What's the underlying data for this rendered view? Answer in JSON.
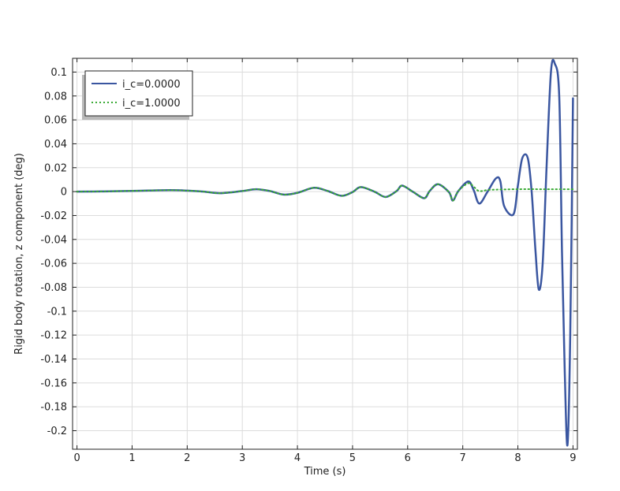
{
  "chart_data": {
    "type": "line",
    "title": "",
    "xlabel": "Time (s)",
    "ylabel": "Rigid body rotation, z component (deg)",
    "xlim": [
      -0.08,
      9.08
    ],
    "ylim": [
      -0.2155,
      0.1115
    ],
    "xticks": [
      0,
      1,
      2,
      3,
      4,
      5,
      6,
      7,
      8,
      9
    ],
    "xtick_labels": [
      "0",
      "1",
      "2",
      "3",
      "4",
      "5",
      "6",
      "7",
      "8",
      "9"
    ],
    "yticks": [
      0.1,
      0.08,
      0.06,
      0.04,
      0.02,
      0,
      -0.02,
      -0.04,
      -0.06,
      -0.08,
      -0.1,
      -0.12,
      -0.14,
      -0.16,
      -0.18,
      -0.2
    ],
    "ytick_labels": [
      "0.1",
      "0.08",
      "0.06",
      "0.04",
      "0.02",
      "0",
      "-0.02",
      "-0.04",
      "-0.06",
      "-0.08",
      "-0.1",
      "-0.12",
      "-0.14",
      "-0.16",
      "-0.18",
      "-0.2"
    ],
    "grid": true,
    "legend_position": "top-left",
    "series": [
      {
        "name": "i_c=0.0000",
        "color": "#3a56a0",
        "style": "solid",
        "x": [
          0,
          0.5,
          1.0,
          1.3,
          1.7,
          2.0,
          2.3,
          2.6,
          3.0,
          3.25,
          3.5,
          3.75,
          4.0,
          4.3,
          4.55,
          4.8,
          5.0,
          5.15,
          5.4,
          5.6,
          5.8,
          5.9,
          6.1,
          6.3,
          6.4,
          6.55,
          6.75,
          6.82,
          6.92,
          7.1,
          7.2,
          7.3,
          7.45,
          7.6,
          7.68,
          7.75,
          7.92,
          8.0,
          8.08,
          8.18,
          8.25,
          8.32,
          8.38,
          8.45,
          8.52,
          8.6,
          8.67,
          8.75,
          8.8,
          8.85,
          8.9,
          8.95,
          9.0
        ],
        "y": [
          0,
          0.0002,
          0.0006,
          0.0009,
          0.0012,
          0.0008,
          0.0,
          -0.0013,
          0.0005,
          0.002,
          0.0005,
          -0.0025,
          -0.001,
          0.0032,
          0.0005,
          -0.0035,
          -0.0004,
          0.0038,
          -0.0001,
          -0.0045,
          0.0005,
          0.005,
          -0.0003,
          -0.0055,
          0.0005,
          0.0062,
          -0.0005,
          -0.0075,
          0.0005,
          0.0085,
          0.001,
          -0.01,
          0.0,
          0.011,
          0.009,
          -0.012,
          -0.019,
          0.005,
          0.028,
          0.028,
          0.0,
          -0.05,
          -0.082,
          -0.06,
          0.02,
          0.1,
          0.107,
          0.08,
          -0.05,
          -0.15,
          -0.212,
          -0.12,
          0.078
        ]
      },
      {
        "name": "i_c=1.0000",
        "color": "#3aaa35",
        "style": "dotted",
        "x": [
          0,
          0.5,
          1.0,
          1.3,
          1.7,
          2.0,
          2.3,
          2.6,
          3.0,
          3.25,
          3.5,
          3.75,
          4.0,
          4.3,
          4.55,
          4.8,
          5.0,
          5.15,
          5.4,
          5.6,
          5.8,
          5.9,
          6.1,
          6.3,
          6.4,
          6.55,
          6.75,
          6.82,
          6.92,
          7.1,
          7.2,
          7.3,
          7.5,
          8.0,
          8.5,
          9.0
        ],
        "y": [
          0,
          0.0002,
          0.0006,
          0.0009,
          0.0012,
          0.0008,
          0.0,
          -0.0013,
          0.0005,
          0.002,
          0.0005,
          -0.0025,
          -0.001,
          0.0032,
          0.0005,
          -0.0035,
          -0.0004,
          0.0038,
          -0.0001,
          -0.0045,
          0.0005,
          0.005,
          -0.0003,
          -0.0055,
          0.0005,
          0.0062,
          -0.0005,
          -0.0075,
          0.0005,
          0.007,
          0.004,
          0.0005,
          0.0015,
          0.002,
          0.002,
          0.002
        ]
      }
    ]
  }
}
